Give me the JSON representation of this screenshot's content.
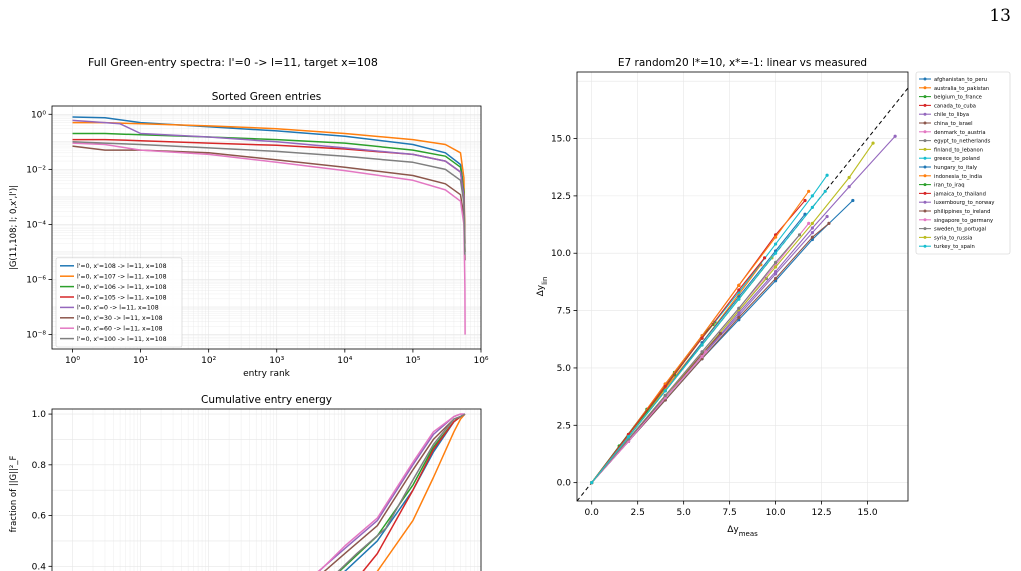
{
  "page": {
    "number": "13",
    "figure_title": "Full Green-entry spectra: l'=0 -> l=11, target x=108"
  },
  "colors": {
    "C0": "#1f77b4",
    "C1": "#ff7f0e",
    "C2": "#2ca02c",
    "C3": "#d62728",
    "C4": "#9467bd",
    "C5": "#8c564b",
    "C6": "#e377c2",
    "C7": "#7f7f7f",
    "C8": "#bcbd22",
    "C9": "#17becf"
  },
  "chart_data": [
    {
      "id": "sorted",
      "type": "line",
      "title": "Sorted Green entries",
      "xlabel": "entry rank",
      "ylabel": "|G(11,108; l; 0,x',l')|",
      "xscale": "log",
      "yscale": "log",
      "xlim": [
        0.5,
        1000000
      ],
      "ylim": [
        3e-09,
        2
      ],
      "xticks": [
        1,
        10,
        100,
        1000,
        10000,
        100000,
        1000000
      ],
      "xtick_labels": [
        "10⁰",
        "10¹",
        "10²",
        "10³",
        "10⁴",
        "10⁵",
        "10⁶"
      ],
      "yticks": [
        1e-08,
        1e-06,
        0.0001,
        0.01,
        1
      ],
      "ytick_labels": [
        "10⁻⁸",
        "10⁻⁶",
        "10⁻⁴",
        "10⁻²",
        "10⁰"
      ],
      "grid": true,
      "legend": "lower-left",
      "series": [
        {
          "name": "l'=0, x'=108 -> l=11, x=108",
          "color": "C0",
          "x": [
            1,
            3,
            10,
            100,
            1000,
            10000,
            100000,
            300000,
            500000,
            560000,
            580000
          ],
          "y": [
            0.8,
            0.75,
            0.5,
            0.35,
            0.25,
            0.16,
            0.08,
            0.04,
            0.015,
            0.002,
            2e-05
          ]
        },
        {
          "name": "l'=0, x'=107 -> l=11, x=108",
          "color": "C1",
          "x": [
            1,
            3,
            10,
            100,
            1000,
            10000,
            100000,
            300000,
            500000,
            560000,
            580000
          ],
          "y": [
            0.5,
            0.5,
            0.45,
            0.38,
            0.3,
            0.2,
            0.12,
            0.08,
            0.04,
            0.005,
            2e-05
          ]
        },
        {
          "name": "l'=0, x'=106 -> l=11, x=108",
          "color": "C2",
          "x": [
            1,
            3,
            10,
            100,
            1000,
            10000,
            100000,
            300000,
            500000,
            560000,
            580000
          ],
          "y": [
            0.2,
            0.2,
            0.18,
            0.15,
            0.12,
            0.09,
            0.05,
            0.03,
            0.012,
            0.0015,
            1e-05
          ]
        },
        {
          "name": "l'=0, x'=105 -> l=11, x=108",
          "color": "C3",
          "x": [
            1,
            3,
            10,
            100,
            1000,
            10000,
            100000,
            300000,
            500000,
            560000,
            580000
          ],
          "y": [
            0.12,
            0.12,
            0.11,
            0.09,
            0.075,
            0.055,
            0.035,
            0.02,
            0.008,
            0.001,
            1e-05
          ]
        },
        {
          "name": "l'=0, x'=0 -> l=11, x=108",
          "color": "C4",
          "x": [
            1,
            3,
            5,
            10,
            100,
            1000,
            10000,
            100000,
            300000,
            500000,
            560000,
            580000
          ],
          "y": [
            0.6,
            0.5,
            0.45,
            0.2,
            0.15,
            0.1,
            0.06,
            0.035,
            0.02,
            0.008,
            0.001,
            5e-06
          ]
        },
        {
          "name": "l'=0, x'=30 -> l=11, x=108",
          "color": "C5",
          "x": [
            1,
            3,
            10,
            100,
            1000,
            10000,
            100000,
            300000,
            500000,
            560000,
            580000
          ],
          "y": [
            0.07,
            0.05,
            0.05,
            0.04,
            0.022,
            0.012,
            0.006,
            0.003,
            0.0012,
            0.0002,
            5e-06
          ]
        },
        {
          "name": "l'=0, x'=60 -> l=11, x=108",
          "color": "C6",
          "x": [
            1,
            3,
            10,
            100,
            1000,
            10000,
            100000,
            300000,
            500000,
            560000,
            580000,
            585000
          ],
          "y": [
            0.09,
            0.08,
            0.05,
            0.035,
            0.018,
            0.009,
            0.004,
            0.0018,
            0.0007,
            0.0001,
            5e-07,
            1e-08
          ]
        },
        {
          "name": "l'=0, x'=100 -> l=11, x=108",
          "color": "C7",
          "x": [
            1,
            3,
            10,
            100,
            1000,
            10000,
            100000,
            300000,
            500000,
            560000,
            580000
          ],
          "y": [
            0.1,
            0.09,
            0.08,
            0.06,
            0.045,
            0.03,
            0.018,
            0.01,
            0.004,
            0.0006,
            8e-06
          ]
        }
      ]
    },
    {
      "id": "cumulative",
      "type": "line",
      "title": "Cumulative entry energy",
      "xlabel": "",
      "ylabel": "fraction of ||G||²_F",
      "xscale": "log",
      "xlim": [
        0.5,
        1000000
      ],
      "ylim": [
        0.35,
        1.02
      ],
      "yticks": [
        0.4,
        0.6,
        0.8,
        1.0
      ],
      "ytick_labels": [
        "0.4",
        "0.6",
        "0.8",
        "1.0"
      ],
      "grid": true,
      "series": [
        {
          "name": "l'=0, x'=108 -> l=11, x=108",
          "color": "C0",
          "x": [
            4000,
            10000,
            30000,
            100000,
            200000,
            400000,
            500000,
            580000
          ],
          "y": [
            0.3,
            0.38,
            0.5,
            0.7,
            0.85,
            0.97,
            0.99,
            1.0
          ]
        },
        {
          "name": "l'=0, x'=107 -> l=11, x=108",
          "color": "C1",
          "x": [
            12000,
            30000,
            100000,
            200000,
            400000,
            500000,
            580000
          ],
          "y": [
            0.3,
            0.38,
            0.58,
            0.75,
            0.93,
            0.98,
            1.0
          ]
        },
        {
          "name": "l'=0, x'=106 -> l=11, x=108",
          "color": "C2",
          "x": [
            4000,
            10000,
            30000,
            100000,
            200000,
            400000,
            500000,
            580000
          ],
          "y": [
            0.3,
            0.4,
            0.52,
            0.72,
            0.87,
            0.97,
            0.99,
            1.0
          ]
        },
        {
          "name": "l'=0, x'=105 -> l=11, x=108",
          "color": "C3",
          "x": [
            8000,
            15000,
            30000,
            100000,
            200000,
            400000,
            500000,
            580000
          ],
          "y": [
            0.3,
            0.35,
            0.45,
            0.7,
            0.86,
            0.97,
            0.99,
            1.0
          ]
        },
        {
          "name": "l'=0, x'=0 -> l=11, x=108",
          "color": "C4",
          "x": [
            2000,
            5000,
            10000,
            30000,
            100000,
            200000,
            400000,
            500000,
            580000
          ],
          "y": [
            0.3,
            0.4,
            0.47,
            0.58,
            0.8,
            0.92,
            0.99,
            1.0,
            1.0
          ]
        },
        {
          "name": "l'=0, x'=30 -> l=11, x=108",
          "color": "C5",
          "x": [
            2000,
            5000,
            10000,
            30000,
            100000,
            200000,
            400000,
            500000,
            580000
          ],
          "y": [
            0.3,
            0.38,
            0.45,
            0.56,
            0.78,
            0.9,
            0.98,
            0.99,
            1.0
          ]
        },
        {
          "name": "l'=0, x'=60 -> l=11, x=108",
          "color": "C6",
          "x": [
            2000,
            5000,
            10000,
            30000,
            100000,
            200000,
            400000,
            500000,
            580000
          ],
          "y": [
            0.31,
            0.4,
            0.48,
            0.59,
            0.81,
            0.93,
            0.99,
            1.0,
            1.0
          ]
        },
        {
          "name": "l'=0, x'=100 -> l=11, x=108",
          "color": "C7",
          "x": [
            3000,
            8000,
            15000,
            40000,
            100000,
            200000,
            400000,
            500000,
            580000
          ],
          "y": [
            0.3,
            0.38,
            0.45,
            0.55,
            0.74,
            0.88,
            0.98,
            0.99,
            1.0
          ]
        }
      ]
    },
    {
      "id": "scatter",
      "type": "line",
      "title": "E7 random20 l*=10, x*=-1: linear vs measured",
      "xlabel": "Δy_meas",
      "ylabel": "Δy_lin",
      "xlim": [
        -0.8,
        17.2
      ],
      "ylim": [
        -0.8,
        17.9
      ],
      "xticks": [
        0,
        2.5,
        5,
        7.5,
        10,
        12.5,
        15
      ],
      "xtick_labels": [
        "0.0",
        "2.5",
        "5.0",
        "7.5",
        "10.0",
        "12.5",
        "15.0"
      ],
      "yticks": [
        0,
        2.5,
        5,
        7.5,
        10,
        12.5,
        15
      ],
      "ytick_labels": [
        "0.0",
        "2.5",
        "5.0",
        "7.5",
        "10.0",
        "12.5",
        "15.0"
      ],
      "grid": true,
      "legend": "outside-right",
      "reference_line": "y=x",
      "series": [
        {
          "name": "afghanistan_to_peru",
          "color": "C0",
          "x": [
            0,
            2.0,
            4.0,
            6.0,
            8.0,
            10.0,
            12.0,
            14.2
          ],
          "y": [
            0,
            1.8,
            3.6,
            5.4,
            7.1,
            8.8,
            10.6,
            12.3
          ]
        },
        {
          "name": "australia_to_pakistan",
          "color": "C1",
          "x": [
            0,
            2.0,
            4.0,
            6.0,
            8.0,
            9.2
          ],
          "y": [
            0,
            2.0,
            4.1,
            6.1,
            8.2,
            9.5
          ]
        },
        {
          "name": "belgium_to_france",
          "color": "C2",
          "x": [
            0,
            1.5,
            3.0,
            4.5,
            6.0,
            6.7
          ],
          "y": [
            0,
            1.6,
            3.2,
            4.8,
            6.4,
            7.0
          ]
        },
        {
          "name": "canada_to_cuba",
          "color": "C3",
          "x": [
            0,
            2.0,
            4.0,
            6.0,
            8.0,
            10.0,
            11.6
          ],
          "y": [
            0,
            2.1,
            4.3,
            6.4,
            8.6,
            10.8,
            12.3
          ]
        },
        {
          "name": "chile_to_libya",
          "color": "C4",
          "x": [
            0,
            2.0,
            4.0,
            6.0,
            8.0,
            10.0,
            12.0,
            12.8
          ],
          "y": [
            0,
            1.8,
            3.7,
            5.5,
            7.3,
            9.1,
            10.9,
            11.6
          ]
        },
        {
          "name": "china_to_israel",
          "color": "C5",
          "x": [
            0,
            2.0,
            4.0,
            6.0,
            8.0,
            10.0,
            12.0,
            12.9
          ],
          "y": [
            0,
            1.8,
            3.6,
            5.4,
            7.2,
            8.9,
            10.7,
            11.3
          ]
        },
        {
          "name": "denmark_to_austria",
          "color": "C6",
          "x": [
            0,
            2.0,
            4.0,
            6.0,
            8.0,
            10.0,
            11.8
          ],
          "y": [
            0,
            1.9,
            3.8,
            5.7,
            7.6,
            9.5,
            11.3
          ]
        },
        {
          "name": "egypt_to_netherlands",
          "color": "C7",
          "x": [
            0,
            2.0,
            4.0,
            6.0,
            8.0,
            9.5
          ],
          "y": [
            0,
            1.9,
            3.8,
            5.6,
            7.5,
            8.9
          ]
        },
        {
          "name": "finland_to_lebanon",
          "color": "C8",
          "x": [
            0,
            2.0,
            4.0,
            6.0,
            8.0,
            10.0,
            12.0,
            14.0,
            15.3
          ],
          "y": [
            0,
            1.9,
            3.8,
            5.6,
            7.5,
            9.4,
            11.3,
            13.3,
            14.8
          ]
        },
        {
          "name": "greece_to_poland",
          "color": "C9",
          "x": [
            0,
            2.0,
            4.0,
            6.0,
            8.0,
            10.0,
            12.0,
            12.8
          ],
          "y": [
            0,
            2.1,
            4.2,
            6.3,
            8.3,
            10.4,
            12.5,
            13.4
          ]
        },
        {
          "name": "hungary_to_italy",
          "color": "C0",
          "x": [
            0,
            2.0,
            4.0,
            6.0,
            8.0,
            10.0,
            11.6
          ],
          "y": [
            0,
            2.0,
            4.0,
            6.1,
            8.1,
            10.1,
            11.7
          ]
        },
        {
          "name": "indonesia_to_india",
          "color": "C1",
          "x": [
            0,
            2.0,
            4.0,
            6.0,
            8.0,
            10.0,
            11.8
          ],
          "y": [
            0,
            2.1,
            4.3,
            6.4,
            8.6,
            10.7,
            12.7
          ]
        },
        {
          "name": "iran_to_iraq",
          "color": "C2",
          "x": [
            0,
            1.5,
            3.0,
            4.5,
            6.0,
            6.6
          ],
          "y": [
            0,
            1.6,
            3.1,
            4.7,
            6.3,
            6.9
          ]
        },
        {
          "name": "jamaica_to_thailand",
          "color": "C3",
          "x": [
            0,
            2.0,
            4.0,
            6.0,
            8.0,
            9.4
          ],
          "y": [
            0,
            2.1,
            4.2,
            6.3,
            8.4,
            9.8
          ]
        },
        {
          "name": "luxembourg_to_norway",
          "color": "C4",
          "x": [
            0,
            2.0,
            4.0,
            6.0,
            8.0,
            10.0,
            12.0,
            14.0,
            16.5
          ],
          "y": [
            0,
            1.8,
            3.7,
            5.5,
            7.4,
            9.2,
            11.1,
            12.9,
            15.1
          ]
        },
        {
          "name": "philippines_to_ireland",
          "color": "C5",
          "x": [
            0,
            2.0,
            4.0,
            6.0,
            7.0
          ],
          "y": [
            0,
            1.9,
            3.7,
            5.6,
            6.5
          ]
        },
        {
          "name": "singapore_to_germany",
          "color": "C6",
          "x": [
            0,
            2.0,
            4.0,
            6.0,
            6.2
          ],
          "y": [
            0,
            1.8,
            3.7,
            5.5,
            5.7
          ]
        },
        {
          "name": "sweden_to_portugal",
          "color": "C7",
          "x": [
            0,
            2.0,
            4.0,
            6.0,
            8.0,
            10.0,
            11.3
          ],
          "y": [
            0,
            1.9,
            3.8,
            5.7,
            7.6,
            9.6,
            10.8
          ]
        },
        {
          "name": "syria_to_russia",
          "color": "C8",
          "x": [
            0,
            2.0,
            4.0,
            6.0,
            8.0,
            9.8
          ],
          "y": [
            0,
            2.0,
            4.0,
            6.0,
            8.0,
            9.8
          ]
        },
        {
          "name": "turkey_to_spain",
          "color": "C9",
          "x": [
            0,
            2.0,
            4.0,
            6.0,
            8.0,
            10.0,
            12.0,
            12.7
          ],
          "y": [
            0,
            2.0,
            4.0,
            6.0,
            8.0,
            10.0,
            12.0,
            12.7
          ]
        }
      ]
    }
  ]
}
